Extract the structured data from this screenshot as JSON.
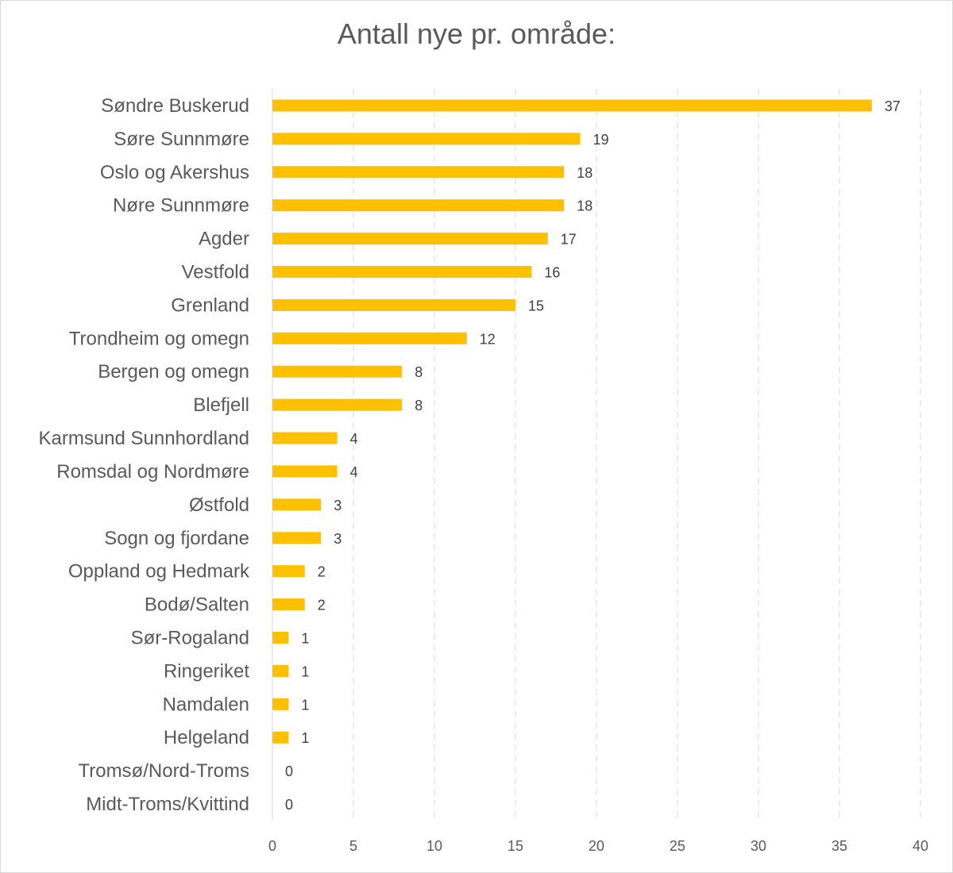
{
  "chart_data": {
    "type": "bar",
    "orientation": "horizontal",
    "title": "Antall nye pr. område:",
    "xlabel": "",
    "ylabel": "",
    "xlim": [
      0,
      40
    ],
    "x_ticks": [
      "0",
      "5",
      "10",
      "15",
      "20",
      "25",
      "30",
      "35",
      "40"
    ],
    "grid": "vertical dashed",
    "legend": "none",
    "bar_color": "#FFC000",
    "categories": [
      "Søndre Buskerud",
      "Søre Sunnmøre",
      "Oslo og Akershus",
      "Nøre Sunnmøre",
      "Agder",
      "Vestfold",
      "Grenland",
      "Trondheim og omegn",
      "Bergen og omegn",
      "Blefjell",
      "Karmsund Sunnhordland",
      "Romsdal og Nordmøre",
      "Østfold",
      "Sogn og fjordane",
      "Oppland og Hedmark",
      "Bodø/Salten",
      "Sør-Rogaland",
      "Ringeriket",
      "Namdalen",
      "Helgeland",
      "Tromsø/Nord-Troms",
      "Midt-Troms/Kvittind"
    ],
    "values": [
      37,
      19,
      18,
      18,
      17,
      16,
      15,
      12,
      8,
      8,
      4,
      4,
      3,
      3,
      2,
      2,
      1,
      1,
      1,
      1,
      0,
      0
    ]
  }
}
